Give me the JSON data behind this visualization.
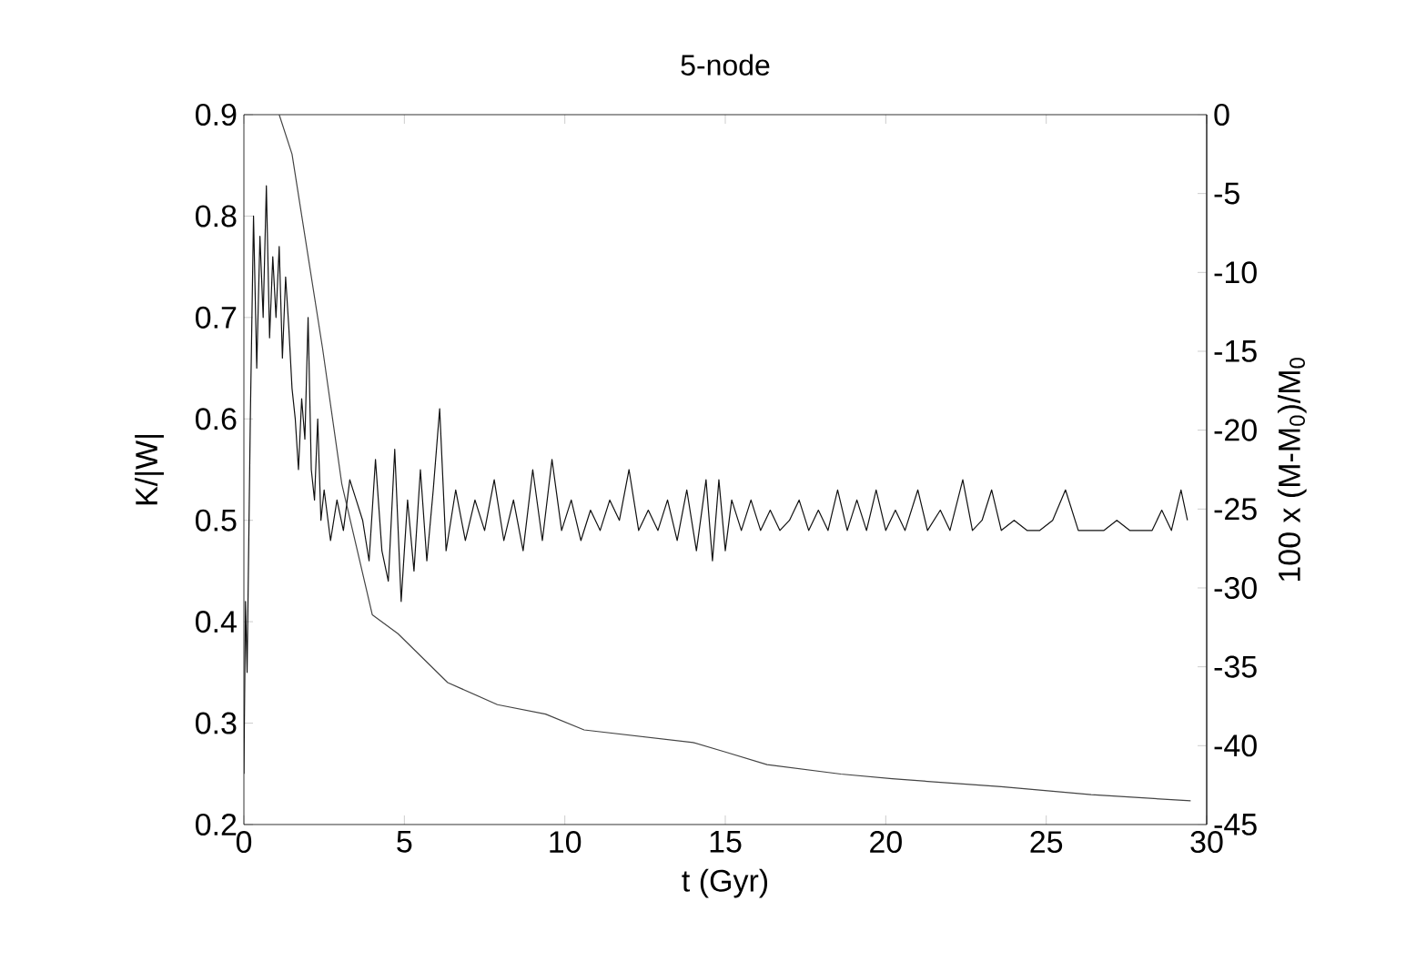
{
  "chart_data": {
    "type": "line",
    "title": "5-node",
    "xlabel": "t (Gyr)",
    "ylabel": "K/|W|",
    "y2label": "100 x (M-M$_{0}$)/M$_{0}$",
    "xlim": [
      0,
      30
    ],
    "xticks": [
      0,
      5,
      10,
      15,
      20,
      25,
      30
    ],
    "ylim": [
      0.2,
      0.9
    ],
    "yticks": [
      0.2,
      0.3,
      0.4,
      0.5,
      0.6,
      0.7,
      0.8,
      0.9
    ],
    "y2lim": [
      -45,
      0
    ],
    "y2ticks": [
      -45,
      -40,
      -35,
      -30,
      -25,
      -20,
      -15,
      -10,
      -5,
      0
    ],
    "line_style": "solid",
    "series": [
      {
        "color": "#111111",
        "x": [
          0,
          0.05,
          0.1,
          0.2,
          0.3,
          0.4,
          0.5,
          0.6,
          0.7,
          0.8,
          0.9,
          1.0,
          1.1,
          1.2,
          1.3,
          1.4,
          1.5,
          1.6,
          1.7,
          1.8,
          1.9,
          2.0,
          2.1,
          2.2,
          2.3,
          2.4,
          2.5,
          2.7,
          2.9,
          3.1,
          3.3,
          3.5,
          3.7,
          3.9,
          4.1,
          4.3,
          4.5,
          4.7,
          4.9,
          5.1,
          5.3,
          5.5,
          5.7,
          5.9,
          6.1,
          6.3,
          6.6,
          6.9,
          7.2,
          7.5,
          7.8,
          8.1,
          8.4,
          8.7,
          9.0,
          9.3,
          9.6,
          9.9,
          10.2,
          10.5,
          10.8,
          11.1,
          11.4,
          11.7,
          12.0,
          12.3,
          12.6,
          12.9,
          13.2,
          13.5,
          13.8,
          14.1,
          14.4,
          14.6,
          14.8,
          15.0,
          15.2,
          15.5,
          15.8,
          16.1,
          16.4,
          16.7,
          17.0,
          17.3,
          17.6,
          17.9,
          18.2,
          18.5,
          18.8,
          19.1,
          19.4,
          19.7,
          20.0,
          20.3,
          20.6,
          21.0,
          21.3,
          21.7,
          22.0,
          22.4,
          22.7,
          23.0,
          23.3,
          23.6,
          24.0,
          24.4,
          24.8,
          25.2,
          25.6,
          26.0,
          26.4,
          26.8,
          27.2,
          27.6,
          28.0,
          28.3,
          28.6,
          28.9,
          29.2,
          29.4
        ],
        "values": [
          0.25,
          0.42,
          0.35,
          0.6,
          0.8,
          0.65,
          0.78,
          0.7,
          0.83,
          0.68,
          0.76,
          0.7,
          0.77,
          0.66,
          0.74,
          0.69,
          0.63,
          0.6,
          0.55,
          0.62,
          0.58,
          0.7,
          0.55,
          0.52,
          0.6,
          0.5,
          0.53,
          0.48,
          0.52,
          0.49,
          0.54,
          0.52,
          0.5,
          0.46,
          0.56,
          0.47,
          0.44,
          0.57,
          0.42,
          0.52,
          0.45,
          0.55,
          0.46,
          0.53,
          0.61,
          0.47,
          0.53,
          0.48,
          0.52,
          0.49,
          0.54,
          0.48,
          0.52,
          0.47,
          0.55,
          0.48,
          0.56,
          0.49,
          0.52,
          0.48,
          0.51,
          0.49,
          0.52,
          0.5,
          0.55,
          0.49,
          0.51,
          0.49,
          0.52,
          0.48,
          0.53,
          0.47,
          0.54,
          0.46,
          0.54,
          0.47,
          0.52,
          0.49,
          0.52,
          0.49,
          0.51,
          0.49,
          0.5,
          0.52,
          0.49,
          0.51,
          0.49,
          0.53,
          0.49,
          0.52,
          0.49,
          0.53,
          0.49,
          0.51,
          0.49,
          0.53,
          0.49,
          0.51,
          0.49,
          0.54,
          0.49,
          0.5,
          0.53,
          0.49,
          0.5,
          0.49,
          0.49,
          0.5,
          0.53,
          0.49,
          0.49,
          0.49,
          0.5,
          0.49,
          0.49,
          0.49,
          0.51,
          0.49,
          0.53,
          0.5
        ]
      },
      {
        "color": "#444444",
        "axis": "y2",
        "x": [
          1.1,
          1.5,
          2.45,
          3.05,
          4.0,
          4.8,
          6.35,
          7.9,
          9.4,
          10.6,
          14.0,
          15.0,
          16.3,
          18.6,
          20.2,
          23.6,
          26.4,
          29.5
        ],
        "values": [
          0,
          -2.5,
          -14.8,
          -23.4,
          -31.7,
          -32.9,
          -36,
          -37.4,
          -38,
          -39,
          -39.8,
          -40.4,
          -41.2,
          -41.8,
          -42.1,
          -42.6,
          -43.1,
          -43.5
        ]
      }
    ]
  }
}
